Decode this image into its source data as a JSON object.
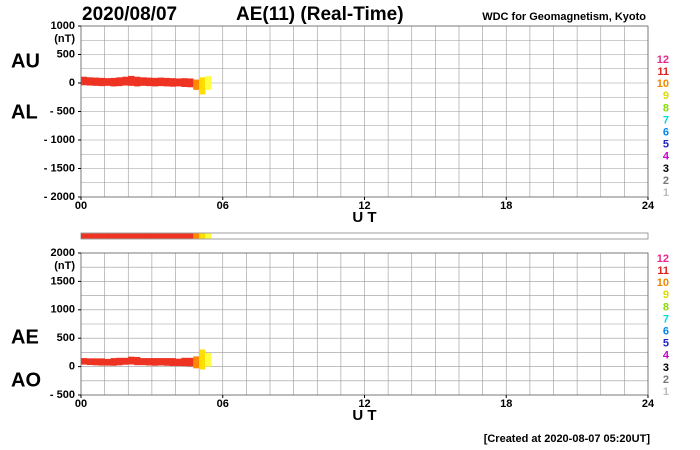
{
  "header": {
    "date": "2020/08/07",
    "title": "AE(11) (Real-Time)",
    "source": "WDC for Geomagnetism, Kyoto"
  },
  "footer": "[Created at 2020-08-07 05:20UT]",
  "chart_data": [
    {
      "type": "band",
      "xlabel": "U T",
      "ylabel": "(nT)",
      "x": [
        0,
        0.25,
        0.5,
        0.75,
        1,
        1.25,
        1.5,
        1.75,
        2,
        2.25,
        2.5,
        2.75,
        3,
        3.25,
        3.5,
        3.75,
        4,
        4.25,
        4.5,
        4.75,
        5,
        5.25
      ],
      "series": [
        {
          "name": "AU",
          "color": "#000000",
          "values": [
            110,
            100,
            95,
            90,
            85,
            90,
            100,
            110,
            125,
            110,
            100,
            95,
            90,
            95,
            90,
            85,
            80,
            85,
            80,
            60,
            100,
            120
          ]
        },
        {
          "name": "AL",
          "color": "#000000",
          "values": [
            -40,
            -45,
            -50,
            -55,
            -50,
            -60,
            -55,
            -45,
            -50,
            -60,
            -50,
            -55,
            -60,
            -55,
            -60,
            -65,
            -60,
            -70,
            -75,
            -120,
            -200,
            -120
          ]
        }
      ],
      "band_colors": [
        "#ee3322",
        "#ee3322",
        "#ee3322",
        "#ee3322",
        "#ee3322",
        "#ee3322",
        "#ee3322",
        "#ee3322",
        "#ee3322",
        "#ee3322",
        "#ee3322",
        "#ee3322",
        "#ee3322",
        "#ee3322",
        "#ee3322",
        "#ee3322",
        "#ee3322",
        "#ee3322",
        "#ee3322",
        "#ff8800",
        "#ffdd00",
        "#ffff44"
      ],
      "xlim": [
        0,
        24
      ],
      "xticks": [
        {
          "value": 0,
          "label": "00"
        },
        {
          "value": 6,
          "label": "06"
        },
        12,
        18,
        24
      ],
      "ylim": [
        -2000,
        1000
      ],
      "yticks": [
        1000,
        500,
        0,
        {
          "value": -500,
          "label": "- 500"
        },
        {
          "value": -1000,
          "label": "- 1000"
        },
        {
          "value": -1500,
          "label": "- 1500"
        },
        {
          "value": -2000,
          "label": "- 2000"
        }
      ],
      "grid": {
        "x": 1,
        "y": 250
      },
      "station_legend": {
        "labels": [
          12,
          11,
          10,
          9,
          8,
          7,
          6,
          5,
          4,
          3,
          2,
          1
        ],
        "colors": [
          "#e8288c",
          "#dd2222",
          "#ee8800",
          "#dddd00",
          "#88dd00",
          "#00dddd",
          "#0088ee",
          "#2222cc",
          "#cc00cc",
          "#000000",
          "#777777",
          "#bbbbbb"
        ]
      }
    },
    {
      "type": "band",
      "xlabel": "U T",
      "ylabel": "(nT)",
      "x": [
        0,
        0.25,
        0.5,
        0.75,
        1,
        1.25,
        1.5,
        1.75,
        2,
        2.25,
        2.5,
        2.75,
        3,
        3.25,
        3.5,
        3.75,
        4,
        4.25,
        4.5,
        4.75,
        5,
        5.25
      ],
      "series": [
        {
          "name": "AE",
          "color": "#000000",
          "values": [
            150,
            145,
            145,
            145,
            135,
            150,
            155,
            155,
            175,
            170,
            150,
            150,
            150,
            150,
            150,
            150,
            140,
            155,
            155,
            180,
            300,
            240
          ]
        },
        {
          "name": "AO",
          "color": "#000000",
          "values": [
            35,
            27.5,
            22.5,
            17.5,
            17.5,
            15,
            22.5,
            32.5,
            37.5,
            25,
            25,
            20,
            15,
            20,
            15,
            10,
            10,
            7.5,
            2.5,
            -30,
            -50,
            0
          ]
        }
      ],
      "band_colors": [
        "#ee3322",
        "#ee3322",
        "#ee3322",
        "#ee3322",
        "#ee3322",
        "#ee3322",
        "#ee3322",
        "#ee3322",
        "#ee3322",
        "#ee3322",
        "#ee3322",
        "#ee3322",
        "#ee3322",
        "#ee3322",
        "#ee3322",
        "#ee3322",
        "#ee3322",
        "#ee3322",
        "#ee3322",
        "#ff8800",
        "#ffdd00",
        "#ffff44"
      ],
      "xlim": [
        0,
        24
      ],
      "xticks": [
        {
          "value": 0,
          "label": "00"
        },
        {
          "value": 6,
          "label": "06"
        },
        12,
        18,
        24
      ],
      "ylim": [
        -500,
        2000
      ],
      "yticks": [
        2000,
        1500,
        1000,
        500,
        0,
        {
          "value": -500,
          "label": "- 500"
        }
      ],
      "grid": {
        "x": 1,
        "y": 250
      },
      "station_legend": {
        "labels": [
          12,
          11,
          10,
          9,
          8,
          7,
          6,
          5,
          4,
          3,
          2,
          1
        ],
        "colors": [
          "#e8288c",
          "#dd2222",
          "#ee8800",
          "#dddd00",
          "#88dd00",
          "#00dddd",
          "#0088ee",
          "#2222cc",
          "#cc00cc",
          "#000000",
          "#777777",
          "#bbbbbb"
        ]
      }
    }
  ]
}
